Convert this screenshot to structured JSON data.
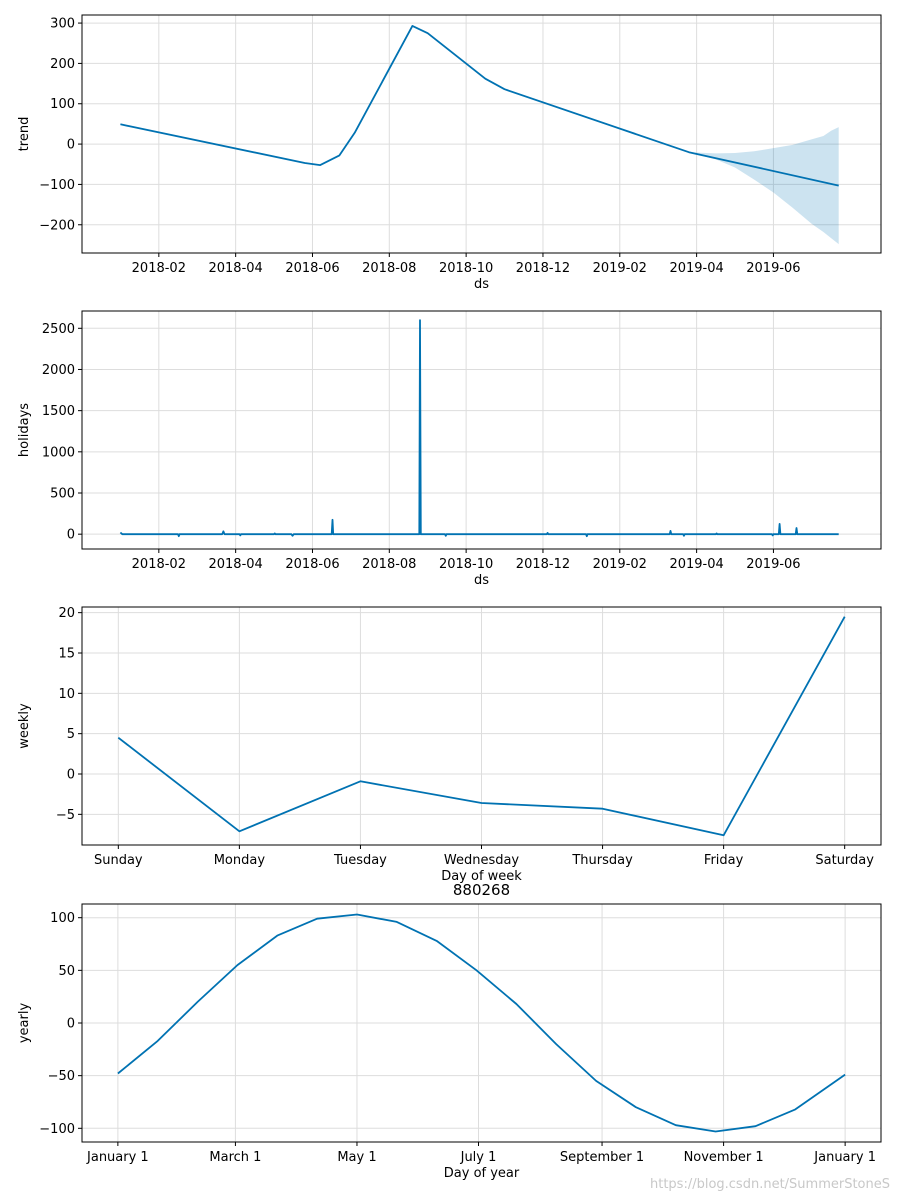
{
  "colors": {
    "line": "#0072b2",
    "band": "#0072b2",
    "grid": "#dddddd",
    "axis": "#000000",
    "background": "#ffffff"
  },
  "watermark": "https://blog.csdn.net/SummerStoneS",
  "chart_data": [
    {
      "id": "trend",
      "type": "line",
      "title": "",
      "xlabel": "ds",
      "ylabel": "trend",
      "x_type": "month_index",
      "x_ticks": [
        {
          "x": 1,
          "label": "2018-02"
        },
        {
          "x": 3,
          "label": "2018-04"
        },
        {
          "x": 5,
          "label": "2018-06"
        },
        {
          "x": 7,
          "label": "2018-08"
        },
        {
          "x": 9,
          "label": "2018-10"
        },
        {
          "x": 11,
          "label": "2018-12"
        },
        {
          "x": 13,
          "label": "2019-02"
        },
        {
          "x": 15,
          "label": "2019-04"
        },
        {
          "x": 17,
          "label": "2019-06"
        }
      ],
      "xlim": [
        -1.0,
        19.8
      ],
      "ylim": [
        -270,
        320
      ],
      "y_ticks": [
        -200,
        -100,
        0,
        100,
        200,
        300
      ],
      "y_tick_labels": [
        "−200",
        "−100",
        "0",
        "100",
        "200",
        "300"
      ],
      "grid": true,
      "series": [
        {
          "name": "trend",
          "x": [
            0.0,
            4.8,
            5.2,
            5.7,
            6.1,
            7.6,
            8.0,
            9.5,
            10.0,
            14.8,
            18.7
          ],
          "values": [
            49,
            -47,
            -52,
            -28,
            28,
            293,
            275,
            162,
            136,
            -20,
            -103
          ]
        }
      ],
      "uncertainty_band": {
        "x": [
          14.8,
          15.5,
          16.0,
          16.5,
          17.0,
          17.5,
          18.0,
          18.3,
          18.5,
          18.7
        ],
        "upper": [
          -20,
          -23,
          -22,
          -18,
          -10,
          -2,
          12,
          20,
          33,
          42
        ],
        "lower": [
          -20,
          -38,
          -58,
          -88,
          -120,
          -158,
          -198,
          -218,
          -233,
          -248
        ]
      }
    },
    {
      "id": "holidays",
      "type": "line",
      "title": "",
      "xlabel": "ds",
      "ylabel": "holidays",
      "x_type": "month_index",
      "x_ticks": [
        {
          "x": 1,
          "label": "2018-02"
        },
        {
          "x": 3,
          "label": "2018-04"
        },
        {
          "x": 5,
          "label": "2018-06"
        },
        {
          "x": 7,
          "label": "2018-08"
        },
        {
          "x": 9,
          "label": "2018-10"
        },
        {
          "x": 11,
          "label": "2018-12"
        },
        {
          "x": 13,
          "label": "2019-02"
        },
        {
          "x": 15,
          "label": "2019-04"
        },
        {
          "x": 17,
          "label": "2019-06"
        }
      ],
      "xlim": [
        -1.0,
        19.8
      ],
      "ylim": [
        -180,
        2710
      ],
      "y_ticks": [
        0,
        500,
        1000,
        1500,
        2000,
        2500
      ],
      "y_tick_labels": [
        "0",
        "500",
        "1000",
        "1500",
        "2000",
        "2500"
      ],
      "grid": true,
      "series": [
        {
          "name": "holidays",
          "x": [
            0.0,
            0.05,
            1.5,
            1.52,
            1.54,
            2.65,
            2.68,
            2.71,
            3.1,
            3.12,
            3.14,
            4.0,
            4.02,
            4.04,
            4.45,
            4.48,
            4.51,
            5.5,
            5.52,
            5.54,
            7.78,
            7.8,
            7.82,
            8.45,
            8.47,
            8.49,
            11.1,
            11.12,
            11.14,
            12.12,
            12.14,
            12.16,
            14.3,
            14.32,
            14.34,
            14.65,
            14.67,
            14.69,
            15.5,
            15.52,
            15.54,
            16.96,
            16.98,
            17.0,
            17.14,
            17.16,
            17.18,
            17.58,
            17.6,
            17.62,
            18.7
          ],
          "values": [
            20,
            0,
            0,
            -25,
            0,
            0,
            35,
            0,
            0,
            -15,
            0,
            0,
            10,
            0,
            0,
            -20,
            0,
            0,
            175,
            0,
            0,
            2600,
            0,
            0,
            -20,
            0,
            0,
            15,
            0,
            0,
            -25,
            0,
            0,
            40,
            0,
            0,
            -20,
            0,
            0,
            10,
            0,
            0,
            -15,
            0,
            0,
            125,
            0,
            0,
            75,
            0,
            0
          ]
        }
      ]
    },
    {
      "id": "weekly",
      "type": "line",
      "title": "",
      "xlabel": "Day of week",
      "ylabel": "weekly",
      "x_type": "index",
      "x_ticks": [
        {
          "x": 0,
          "label": "Sunday"
        },
        {
          "x": 1,
          "label": "Monday"
        },
        {
          "x": 2,
          "label": "Tuesday"
        },
        {
          "x": 3,
          "label": "Wednesday"
        },
        {
          "x": 4,
          "label": "Thursday"
        },
        {
          "x": 5,
          "label": "Friday"
        },
        {
          "x": 6,
          "label": "Saturday"
        }
      ],
      "xlim": [
        -0.3,
        6.3
      ],
      "ylim": [
        -8.8,
        20.7
      ],
      "y_ticks": [
        -5,
        0,
        5,
        10,
        15,
        20
      ],
      "y_tick_labels": [
        "−5",
        "0",
        "5",
        "10",
        "15",
        "20"
      ],
      "grid": true,
      "series": [
        {
          "name": "weekly",
          "x": [
            0,
            1,
            2,
            3,
            4,
            5,
            6
          ],
          "values": [
            4.5,
            -7.1,
            -0.9,
            -3.6,
            -4.3,
            -7.6,
            19.5
          ]
        }
      ]
    },
    {
      "id": "yearly",
      "type": "line",
      "title": "880268",
      "xlabel": "Day of year",
      "ylabel": "yearly",
      "x_type": "day_of_year",
      "x_ticks": [
        {
          "x": 0,
          "label": "January 1"
        },
        {
          "x": 59,
          "label": "March 1"
        },
        {
          "x": 120,
          "label": "May 1"
        },
        {
          "x": 181,
          "label": "July 1"
        },
        {
          "x": 243,
          "label": "September 1"
        },
        {
          "x": 304,
          "label": "November 1"
        },
        {
          "x": 365,
          "label": "January 1"
        }
      ],
      "xlim": [
        -18,
        383
      ],
      "ylim": [
        -113,
        113
      ],
      "y_ticks": [
        -100,
        -50,
        0,
        50,
        100
      ],
      "y_tick_labels": [
        "−100",
        "−50",
        "0",
        "50",
        "100"
      ],
      "grid": true,
      "series": [
        {
          "name": "yearly",
          "x": [
            0,
            20,
            40,
            60,
            80,
            100,
            120,
            140,
            160,
            180,
            200,
            220,
            240,
            260,
            280,
            300,
            320,
            340,
            365
          ],
          "values": [
            -48,
            -17,
            20,
            55,
            83,
            99,
            103,
            96,
            78,
            50,
            18,
            -20,
            -55,
            -80,
            -97,
            -103,
            -98,
            -82,
            -49
          ]
        }
      ]
    }
  ]
}
